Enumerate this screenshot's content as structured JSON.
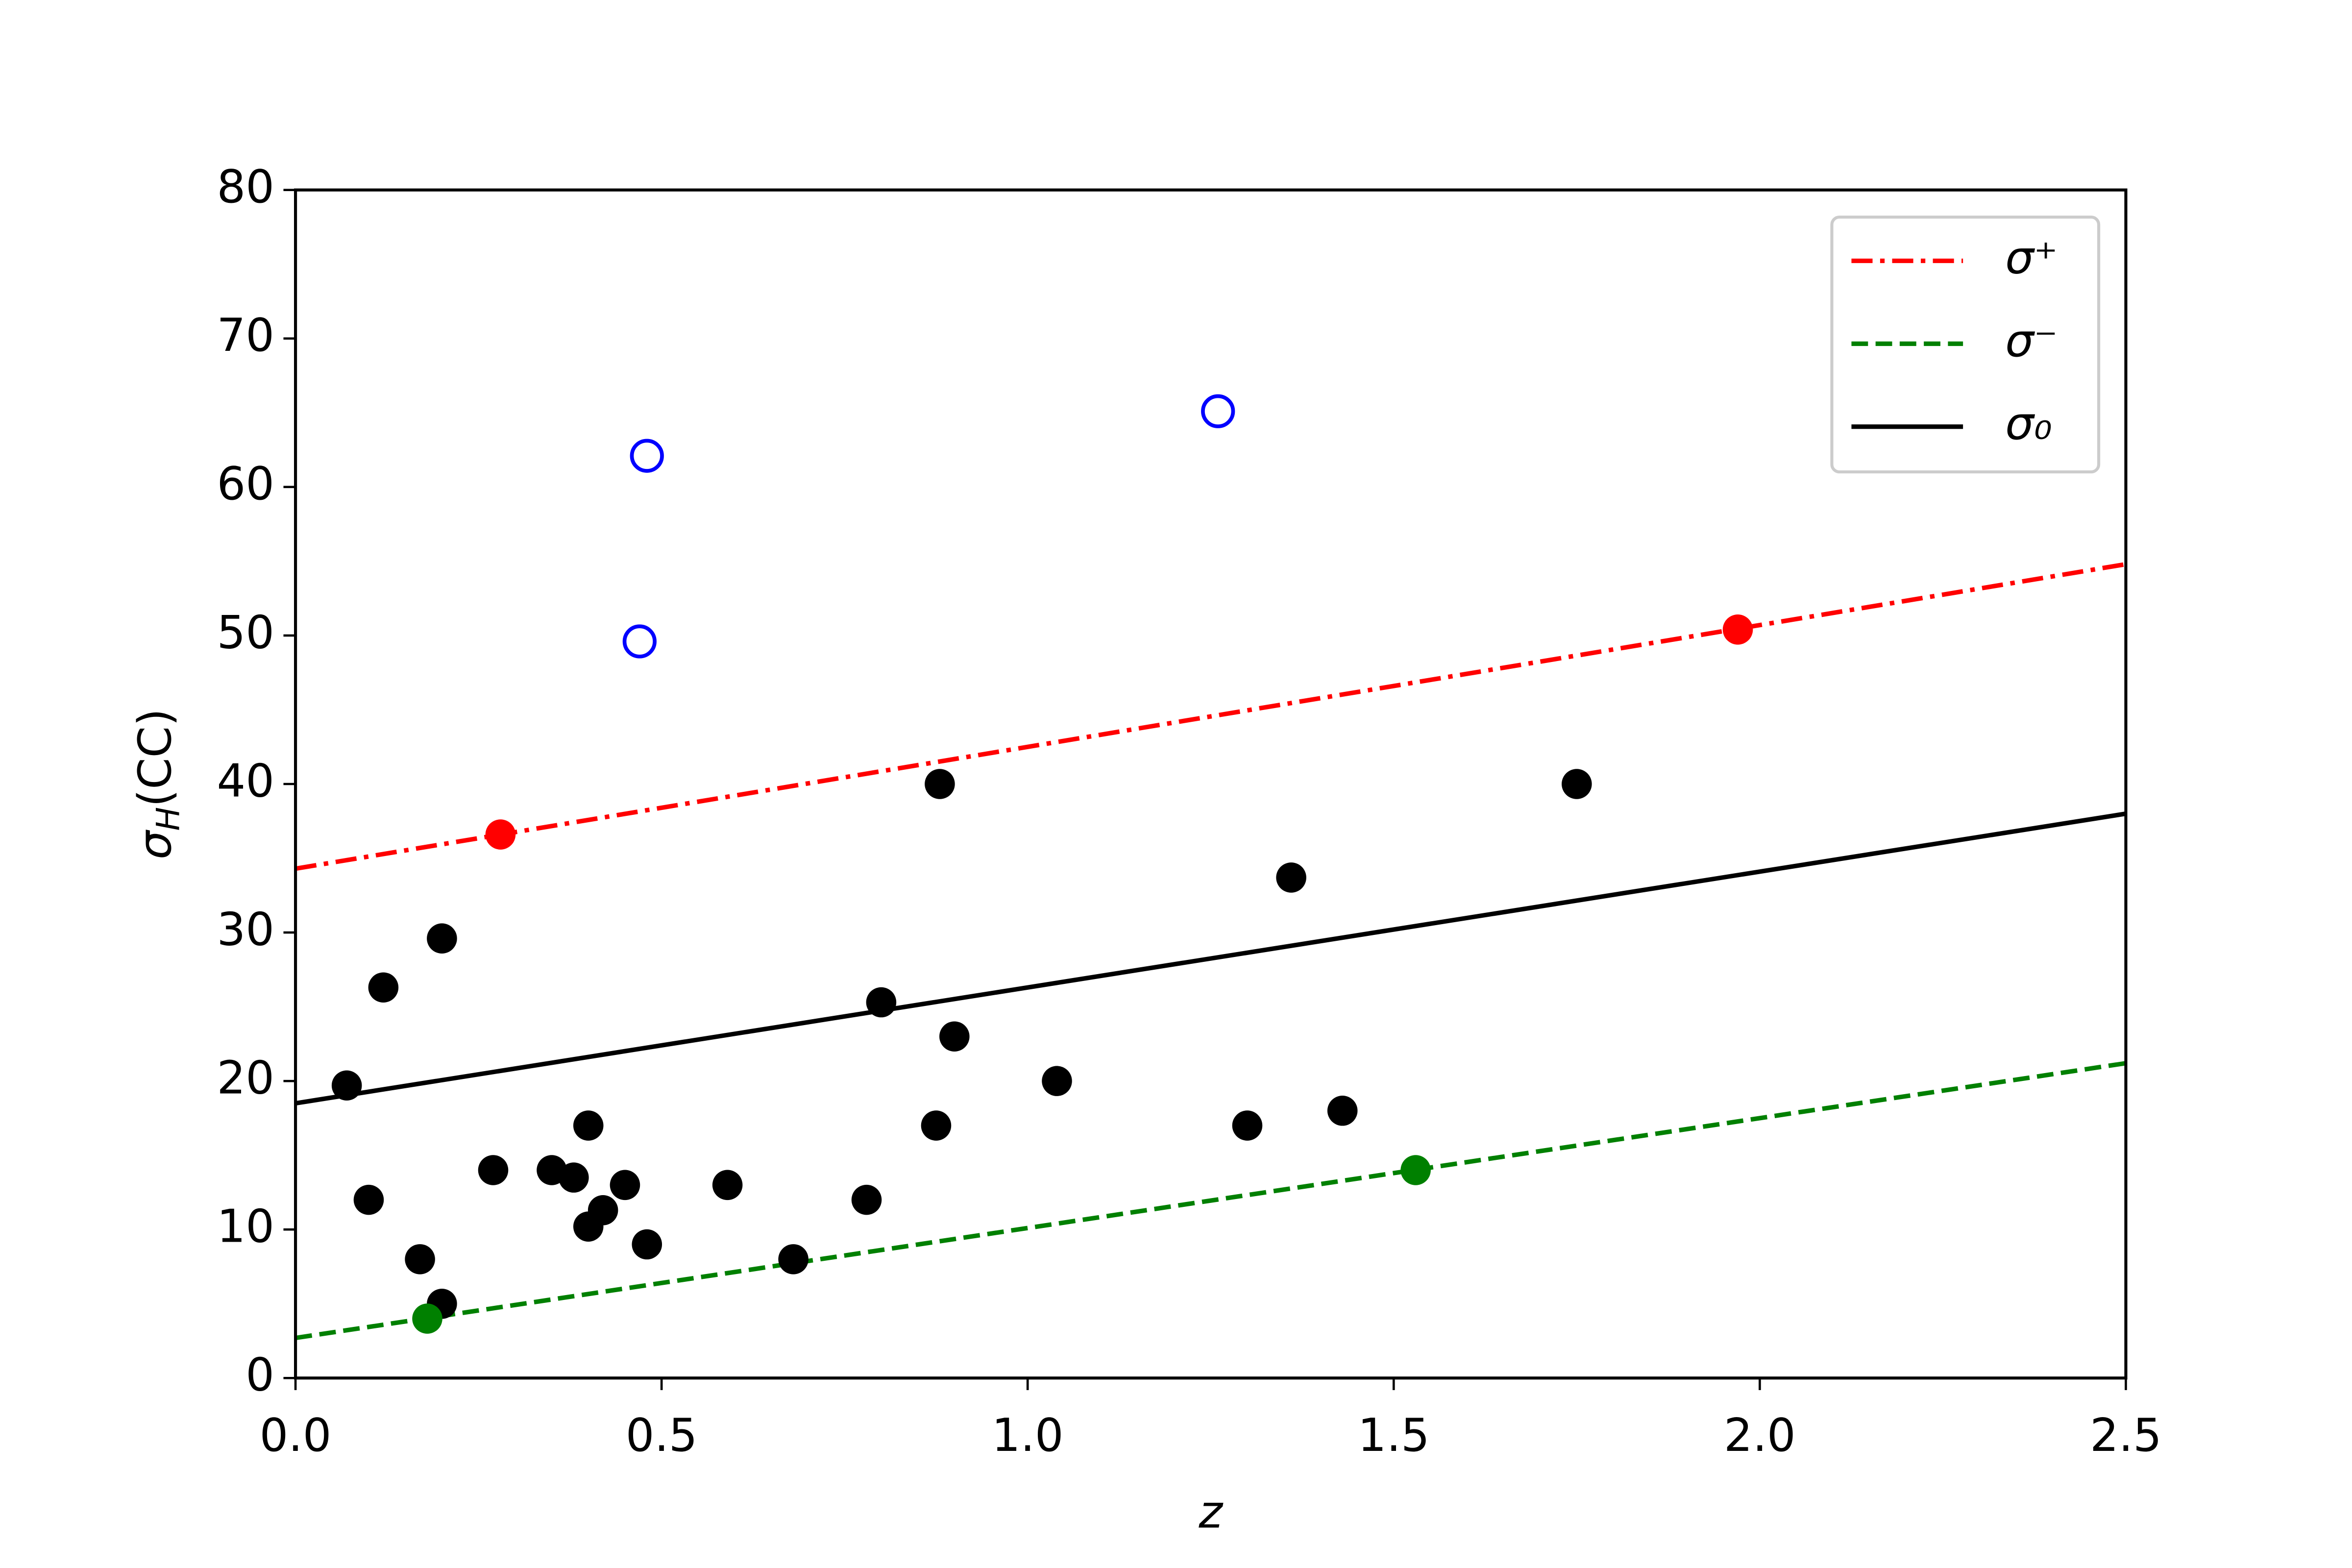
{
  "chart_data": {
    "type": "scatter",
    "xlabel": "z",
    "ylabel": {
      "symbol": "σ",
      "subscript": "H",
      "rest": "(CC)"
    },
    "xlim": [
      0,
      2.5
    ],
    "ylim": [
      0,
      80
    ],
    "xticks": [
      {
        "value": 0,
        "label": "0.0"
      },
      0.5,
      {
        "value": 1,
        "label": "1.0"
      },
      1.5,
      {
        "value": 2,
        "label": "2.0"
      },
      2.5
    ],
    "yticks": [
      0,
      10,
      20,
      30,
      40,
      50,
      60,
      70,
      80
    ],
    "legend": "upper right",
    "series": [
      {
        "name": "σ⁺",
        "color": "#ff0000",
        "linestyle": "dashdot",
        "x": [
          0,
          2.5
        ],
        "values": [
          34.3,
          54.8
        ]
      },
      {
        "name": "σ⁻",
        "color": "#008000",
        "linestyle": "dashed",
        "x": [
          0,
          2.5
        ],
        "values": [
          2.7,
          21.2
        ]
      },
      {
        "name": "σ₀",
        "color": "#000000",
        "linestyle": "solid",
        "x": [
          0,
          2.5
        ],
        "values": [
          18.5,
          38
        ]
      },
      {
        "color": "#000000",
        "marker": "filled",
        "x": [
          0.07,
          0.1,
          0.12,
          0.17,
          0.2,
          0.2,
          0.27,
          0.35,
          0.38,
          0.4,
          0.4,
          0.42,
          0.45,
          0.48,
          0.59,
          0.68,
          0.78,
          0.8,
          0.875,
          0.88,
          0.9,
          1.04,
          1.3,
          1.36,
          1.43,
          1.75
        ],
        "values": [
          19.7,
          12,
          26.3,
          8,
          29.6,
          5,
          14,
          14,
          13.5,
          17,
          10.2,
          11.3,
          13,
          9,
          13,
          8,
          12,
          25.3,
          17,
          40,
          23,
          20,
          17,
          33.7,
          18,
          40
        ]
      },
      {
        "color": "#ff0000",
        "marker": "filled",
        "x": [
          0.28,
          1.97
        ],
        "values": [
          36.6,
          50.4
        ]
      },
      {
        "color": "#008000",
        "marker": "filled",
        "x": [
          0.18,
          1.53
        ],
        "values": [
          4,
          14
        ]
      },
      {
        "color": "#0000ff",
        "marker": "open",
        "x": [
          0.47,
          0.48,
          1.26
        ],
        "values": [
          49.6,
          62.1,
          65.1
        ]
      }
    ]
  }
}
